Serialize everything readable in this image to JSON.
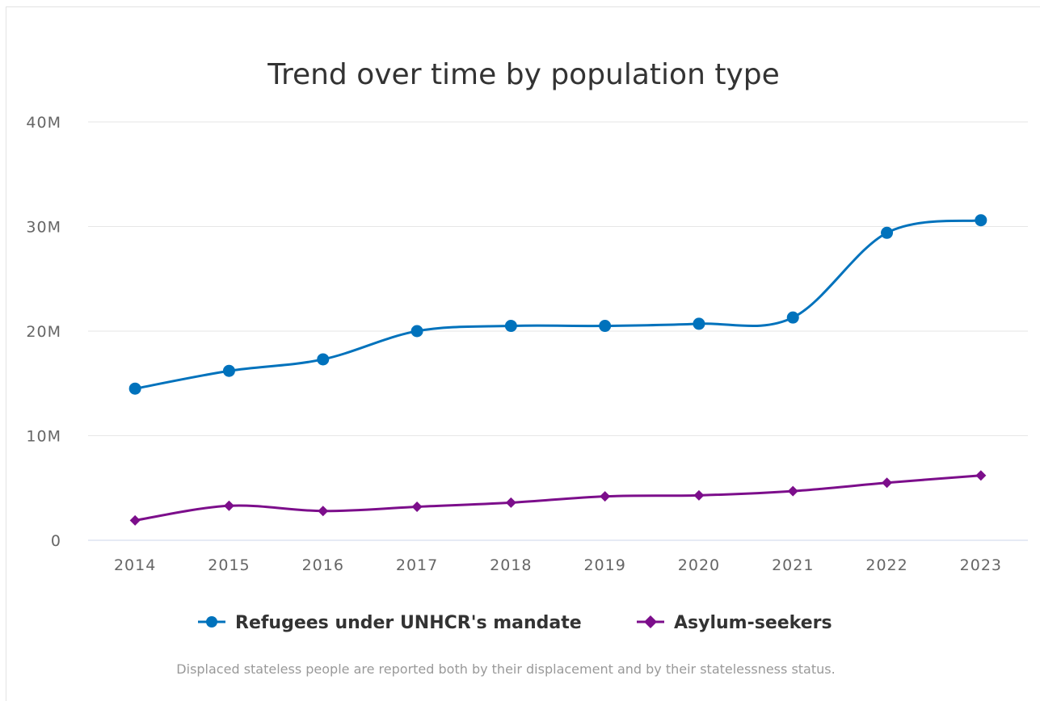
{
  "chart_data": {
    "type": "line",
    "title": "Trend over time by population type",
    "categories": [
      "2014",
      "2015",
      "2016",
      "2017",
      "2018",
      "2019",
      "2020",
      "2021",
      "2022",
      "2023"
    ],
    "y_ticks": [
      "0",
      "10M",
      "20M",
      "30M",
      "40M"
    ],
    "ylim": [
      0,
      40000000
    ],
    "grid": true,
    "legend_position": "bottom",
    "series": [
      {
        "name": "Refugees under UNHCR's mandate",
        "color": "#0072bc",
        "marker": "circle",
        "values": [
          14500000,
          16200000,
          17300000,
          20000000,
          20500000,
          20500000,
          20700000,
          21300000,
          29400000,
          30600000
        ]
      },
      {
        "name": "Asylum-seekers",
        "color": "#7c0e8b",
        "marker": "diamond",
        "values": [
          1900000,
          3300000,
          2800000,
          3200000,
          3600000,
          4200000,
          4300000,
          4700000,
          5500000,
          6200000
        ]
      }
    ],
    "footnote": "Displaced stateless people are reported both by their displacement and by their statelessness status."
  }
}
